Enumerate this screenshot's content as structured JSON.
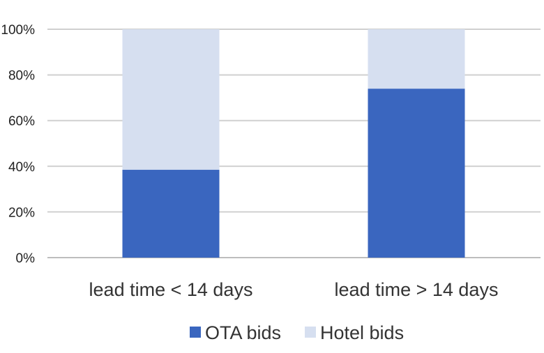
{
  "chart_data": {
    "type": "bar",
    "stacked": true,
    "percent": true,
    "categories": [
      "lead time < 14 days",
      "lead time > 14 days"
    ],
    "series": [
      {
        "name": "OTA bids",
        "values": [
          38.5,
          74
        ],
        "color": "#3a66bf"
      },
      {
        "name": "Hotel bids",
        "values": [
          61.5,
          26
        ],
        "color": "#d6dff0"
      }
    ],
    "ylim": [
      0,
      100
    ],
    "yticks": [
      "0%",
      "20%",
      "40%",
      "60%",
      "80%",
      "100%"
    ],
    "grid": true,
    "legend": "bottom",
    "title": "",
    "xlabel": "",
    "ylabel": ""
  }
}
